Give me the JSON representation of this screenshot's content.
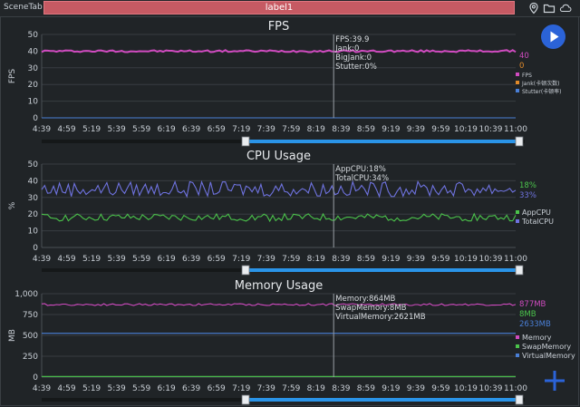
{
  "topbar": {
    "scene_tab": "SceneTab",
    "label_tab": "label1",
    "icons": [
      "location-pin-icon",
      "folder-icon",
      "cloud-icon"
    ]
  },
  "colors": {
    "background": "#202427",
    "label_tab": "#c65a63",
    "fps": "#d04bc0",
    "jank": "#e08a2a",
    "stutter": "#4a7fd6",
    "app_cpu": "#4bc44b",
    "total_cpu": "#6f73e0",
    "memory": "#d04bc0",
    "swap_memory": "#4bc44b",
    "virtual_memory": "#4a7fd6",
    "scrollbar": "#2a94e8",
    "play_button": "#2b63d8"
  },
  "time_ticks": [
    "4:39",
    "4:59",
    "5:19",
    "5:39",
    "5:59",
    "6:19",
    "6:39",
    "6:59",
    "7:19",
    "7:39",
    "7:59",
    "8:19",
    "8:39",
    "8:59",
    "9:19",
    "9:39",
    "9:59",
    "10:19",
    "10:39",
    "11:00"
  ],
  "chart_data": [
    {
      "type": "line",
      "title": "FPS",
      "ylabel": "FPS",
      "ylim": [
        0,
        50
      ],
      "yticks": [
        "0",
        "10",
        "20",
        "30",
        "40",
        "50"
      ],
      "grid": true,
      "legend_placement": "right",
      "series": [
        {
          "name": "FPS",
          "approx_value": 40,
          "current_value": "40",
          "color": "#d04bc0"
        },
        {
          "name": "Jank(卡顿次数)",
          "approx_value": 0,
          "current_value": "0",
          "color": "#e08a2a"
        },
        {
          "name": "Stutter(卡顿率)",
          "approx_value": 0,
          "current_value": "",
          "color": "#4a7fd6"
        }
      ],
      "cursor_time": "8:31",
      "tooltip": [
        "FPS:39.9",
        "Jank:0",
        "BigJank:0",
        "Stutter:0%"
      ]
    },
    {
      "type": "line",
      "title": "CPU Usage",
      "ylabel": "%",
      "ylim": [
        0,
        50
      ],
      "yticks": [
        "0",
        "10",
        "20",
        "30",
        "40",
        "50"
      ],
      "grid": true,
      "legend_placement": "right",
      "series": [
        {
          "name": "AppCPU",
          "approx_value": 18,
          "current_value": "18%",
          "color": "#4bc44b"
        },
        {
          "name": "TotalCPU",
          "approx_value": 35,
          "current_value": "33%",
          "color": "#6f73e0"
        }
      ],
      "cursor_time": "8:31",
      "tooltip": [
        "AppCPU:18%",
        "TotalCPU:34%"
      ]
    },
    {
      "type": "line",
      "title": "Memory Usage",
      "ylabel": "MB",
      "ylim": [
        0,
        1000
      ],
      "yticks": [
        "0",
        "250",
        "500",
        "750",
        "1,000"
      ],
      "grid": true,
      "legend_placement": "right",
      "series": [
        {
          "name": "Memory",
          "approx_value": 870,
          "current_value": "877MB",
          "color": "#d04bc0"
        },
        {
          "name": "SwapMemory",
          "approx_value": 8,
          "current_value": "8MB",
          "color": "#4bc44b"
        },
        {
          "name": "VirtualMemory",
          "approx_value": 525,
          "current_value": "2633MB",
          "color": "#4a7fd6"
        }
      ],
      "cursor_time": "8:31",
      "tooltip": [
        "Memory:864MB",
        "SwapMemory:8MB",
        "VirtualMemory:2621MB"
      ]
    }
  ]
}
